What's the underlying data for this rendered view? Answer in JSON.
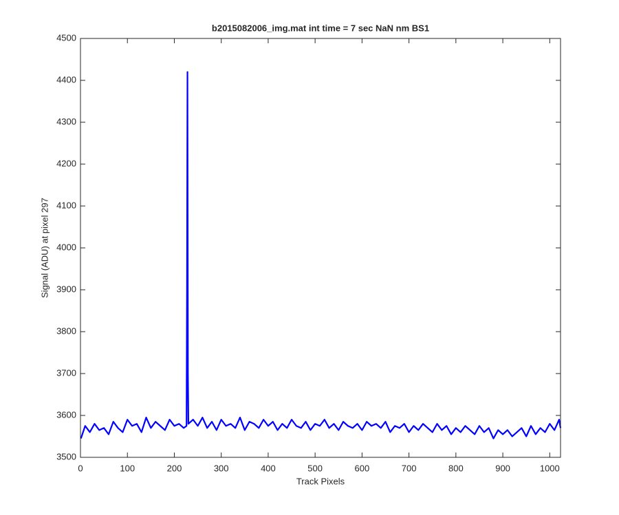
{
  "chart_data": {
    "type": "line",
    "title": "b2015082006_img.mat int time = 7 sec  NaN nm BS1",
    "xlabel": "Track Pixels",
    "ylabel": "Signal (ADU) at pixel 297",
    "x": [
      1,
      10,
      20,
      30,
      40,
      50,
      60,
      70,
      80,
      90,
      100,
      110,
      120,
      130,
      140,
      150,
      160,
      170,
      180,
      190,
      200,
      210,
      220,
      226,
      227,
      228,
      229,
      230,
      240,
      250,
      260,
      270,
      280,
      290,
      300,
      310,
      320,
      330,
      340,
      350,
      360,
      370,
      380,
      390,
      400,
      410,
      420,
      430,
      440,
      450,
      460,
      470,
      480,
      490,
      500,
      510,
      520,
      530,
      540,
      550,
      560,
      570,
      580,
      590,
      600,
      610,
      620,
      630,
      640,
      650,
      660,
      670,
      680,
      690,
      700,
      710,
      720,
      730,
      740,
      750,
      760,
      770,
      780,
      790,
      800,
      810,
      820,
      830,
      840,
      850,
      860,
      870,
      880,
      890,
      900,
      910,
      920,
      930,
      940,
      950,
      960,
      970,
      980,
      990,
      1000,
      1010,
      1020,
      1023
    ],
    "values": [
      3545,
      3575,
      3560,
      3580,
      3565,
      3570,
      3555,
      3585,
      3570,
      3560,
      3590,
      3575,
      3580,
      3560,
      3595,
      3570,
      3585,
      3575,
      3565,
      3590,
      3575,
      3580,
      3570,
      3575,
      3900,
      4420,
      3700,
      3580,
      3590,
      3575,
      3595,
      3570,
      3585,
      3565,
      3590,
      3575,
      3580,
      3570,
      3595,
      3565,
      3585,
      3580,
      3570,
      3590,
      3575,
      3585,
      3565,
      3580,
      3570,
      3590,
      3575,
      3570,
      3585,
      3565,
      3580,
      3575,
      3590,
      3570,
      3580,
      3565,
      3585,
      3575,
      3570,
      3580,
      3565,
      3585,
      3575,
      3580,
      3570,
      3585,
      3560,
      3575,
      3570,
      3580,
      3560,
      3575,
      3565,
      3580,
      3570,
      3560,
      3580,
      3565,
      3575,
      3555,
      3570,
      3560,
      3575,
      3565,
      3555,
      3575,
      3560,
      3570,
      3545,
      3565,
      3555,
      3565,
      3550,
      3560,
      3570,
      3550,
      3575,
      3555,
      3570,
      3560,
      3580,
      3565,
      3590,
      3570
    ],
    "color": "#0000ff",
    "xlim": [
      0,
      1023
    ],
    "ylim": [
      3500,
      4500
    ],
    "xticks": [
      0,
      100,
      200,
      300,
      400,
      500,
      600,
      700,
      800,
      900,
      1000
    ],
    "yticks": [
      3500,
      3600,
      3700,
      3800,
      3900,
      4000,
      4100,
      4200,
      4300,
      4400,
      4500
    ]
  }
}
